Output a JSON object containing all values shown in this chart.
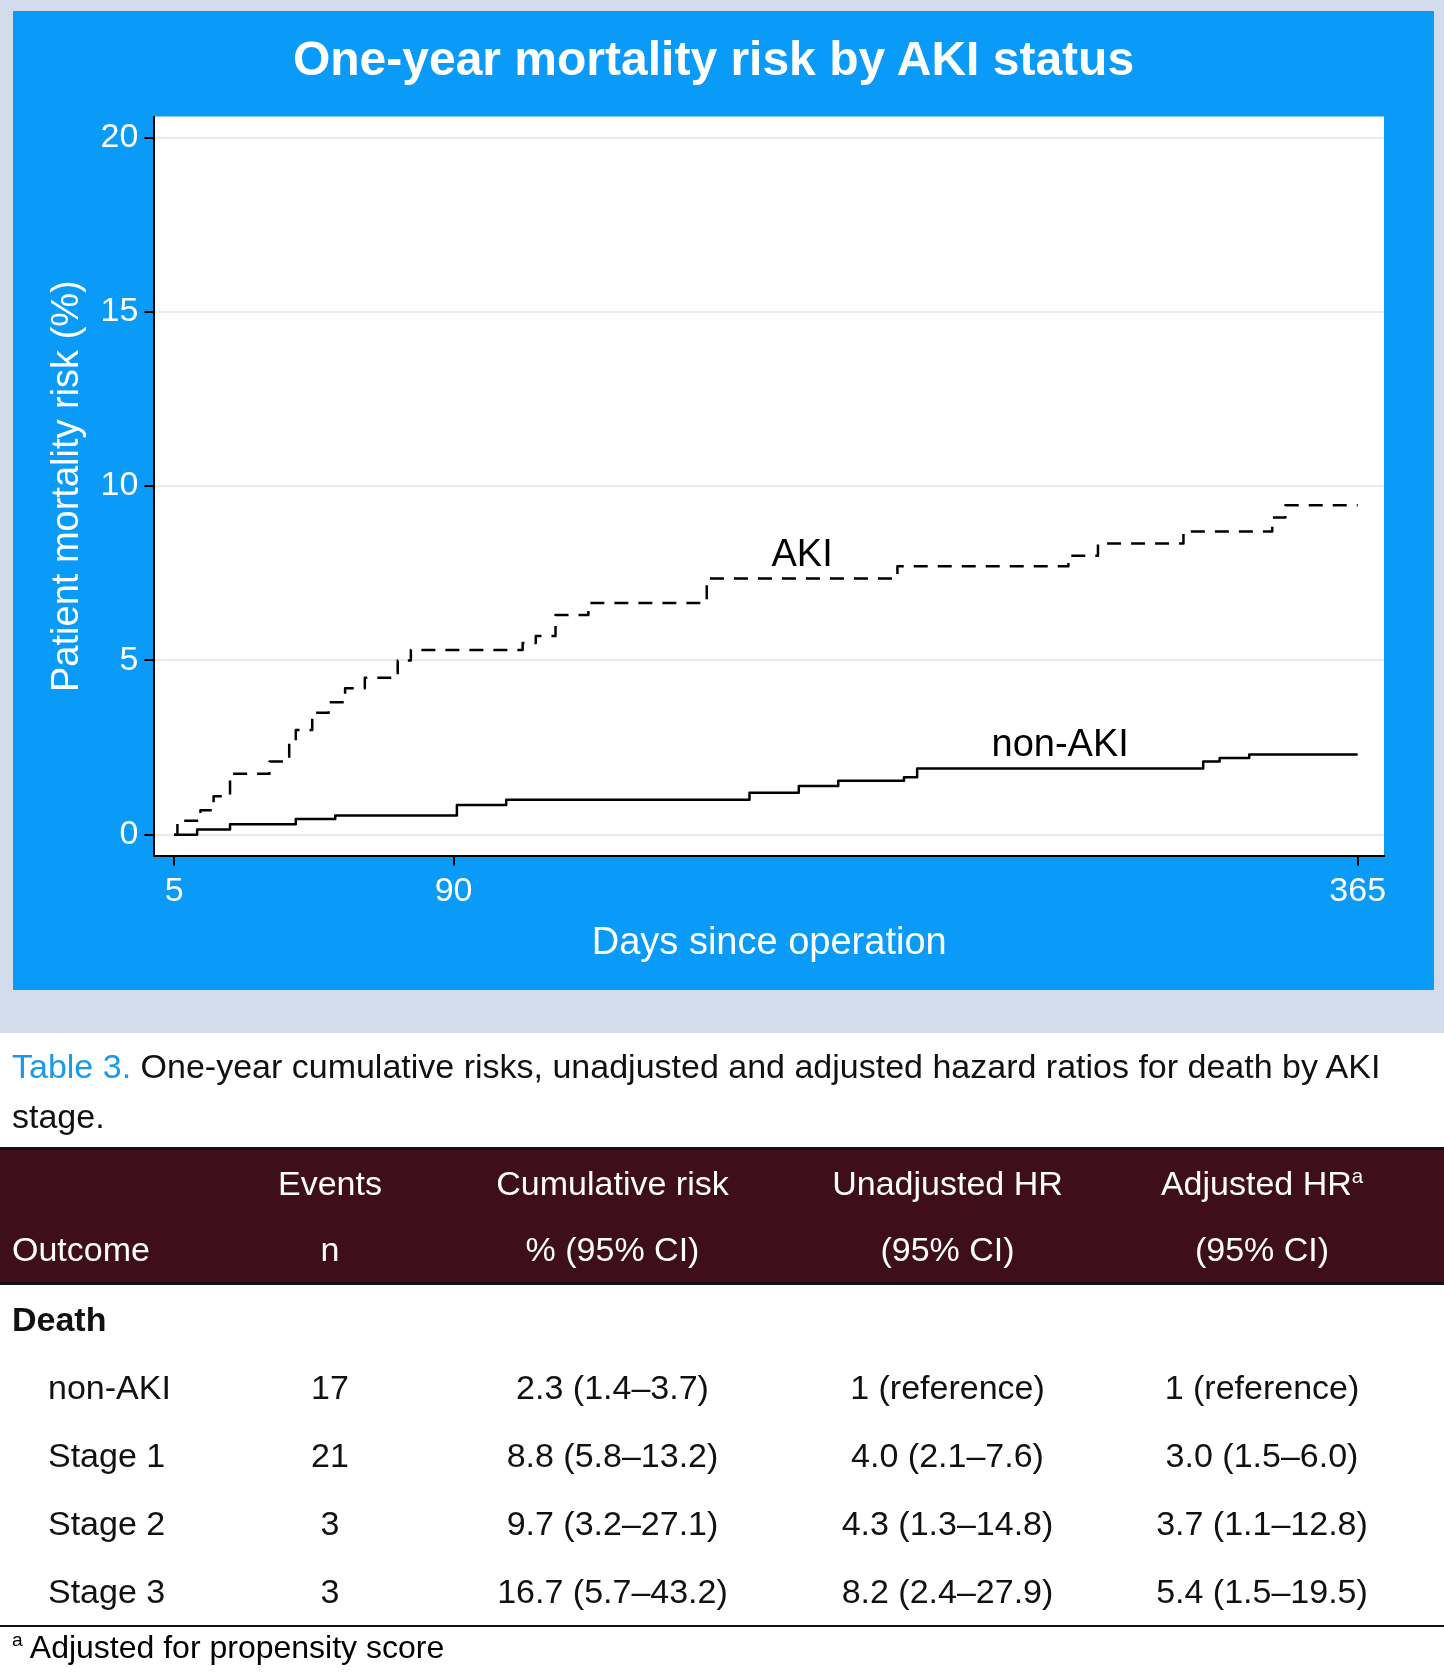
{
  "chart_data": [
    {
      "type": "step",
      "title": "One-year mortality risk by AKI status",
      "xlabel": "Days since operation",
      "ylabel": "Patient mortality risk (%)",
      "xlim": [
        -1,
        373
      ],
      "ylim": [
        -0.6,
        20.6
      ],
      "xticks": [
        5,
        90,
        365
      ],
      "yticks": [
        0,
        5,
        10,
        15,
        20
      ],
      "grid": "y",
      "legend": false,
      "series": [
        {
          "name": "AKI",
          "color": "#000000",
          "line_style": "dashed",
          "x": [
            5,
            6,
            13,
            17,
            22,
            34,
            40,
            42,
            47,
            52,
            57,
            63,
            73,
            77,
            111,
            115,
            121,
            131,
            167,
            225,
            277,
            286,
            312,
            339,
            343,
            365
          ],
          "values": [
            0,
            0.4,
            0.7,
            1.1,
            1.75,
            2.1,
            2.7,
            3.0,
            3.5,
            3.8,
            4.2,
            4.5,
            5.0,
            5.3,
            5.5,
            5.7,
            6.3,
            6.65,
            7.35,
            7.7,
            8.0,
            8.35,
            8.7,
            9.1,
            9.45,
            9.45
          ]
        },
        {
          "name": "non-AKI",
          "color": "#000000",
          "line_style": "solid",
          "x": [
            5,
            12,
            22,
            42,
            54,
            91,
            106,
            180,
            195,
            207,
            227,
            231,
            318,
            323,
            332,
            365
          ],
          "values": [
            0,
            0.15,
            0.3,
            0.45,
            0.55,
            0.85,
            1.0,
            1.2,
            1.4,
            1.55,
            1.65,
            1.9,
            2.1,
            2.2,
            2.3,
            2.3
          ]
        }
      ]
    },
    {
      "type": "other",
      "title": "Table 3.",
      "subtitle": "One-year cumulative risks, unadjusted and adjusted hazard ratios for death by AKI stage.",
      "categories": [
        null,
        "Events",
        "Cumulative risk",
        "Unadjusted HR",
        "Adjusted HR$^{a}$"
      ],
      "y_categories": [
        "Outcome",
        "Death",
        "non-AKI",
        "Stage 1",
        "Stage 2",
        "Stage 3"
      ],
      "cell_labels": [
        [
          "n",
          "% (95% CI)",
          "(95% CI)",
          "(95% CI)"
        ],
        [
          null,
          null,
          null,
          null
        ],
        [
          "17",
          "2.3 (1.4–3.7)",
          "1 (reference)",
          "1 (reference)"
        ],
        [
          "21",
          "8.8 (5.8–13.2)",
          "4.0 (2.1–7.6)",
          "3.0 (1.5–6.0)"
        ],
        [
          "3",
          "9.7 (3.2–27.1)",
          "4.3 (1.3–14.8)",
          "3.7 (1.1–12.8)"
        ],
        [
          "3",
          "16.7 (5.7–43.2)",
          "8.2 (2.4–27.9)",
          "5.4 (1.5–19.5)"
        ]
      ],
      "annotations": [
        "$^{a}$ Adjusted for propensity score"
      ]
    }
  ]
}
